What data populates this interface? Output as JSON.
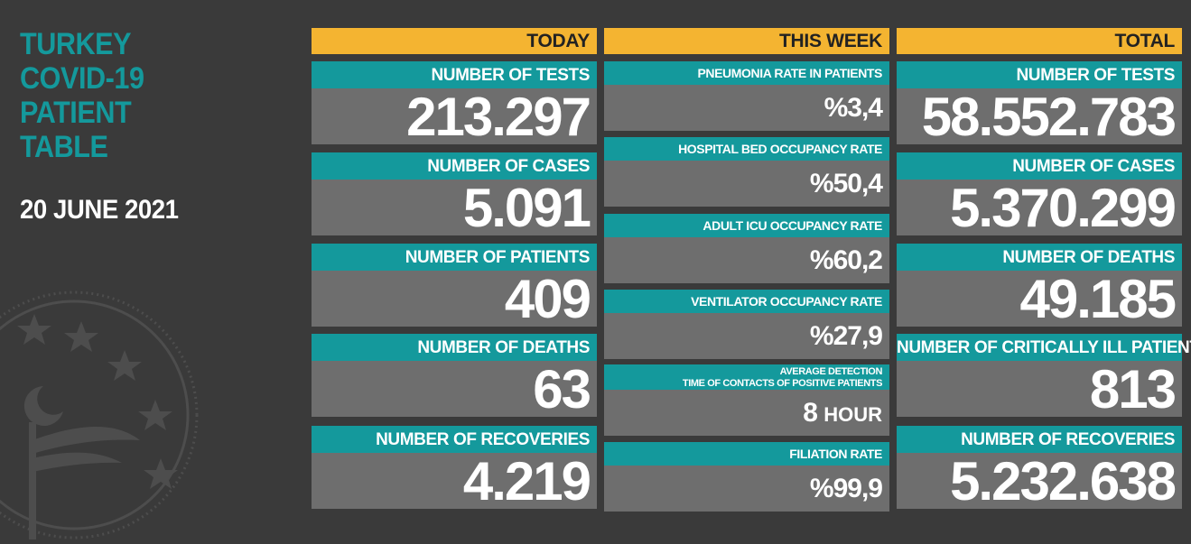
{
  "title": {
    "line1": "TURKEY",
    "line2": "COVID-19",
    "line3": "PATIENT",
    "line4": "TABLE"
  },
  "date": "20 JUNE 2021",
  "colors": {
    "background": "#3a3a3a",
    "teal": "#14999c",
    "header": "#f4b431",
    "value_bg": "#6e6e6e",
    "text": "#ffffff"
  },
  "today": {
    "header": "TODAY",
    "items": [
      {
        "label": "NUMBER OF TESTS",
        "value": "213.297"
      },
      {
        "label": "NUMBER OF CASES",
        "value": "5.091"
      },
      {
        "label": "NUMBER OF PATIENTS",
        "value": "409"
      },
      {
        "label": "NUMBER OF DEATHS",
        "value": "63"
      },
      {
        "label": "NUMBER OF RECOVERIES",
        "value": "4.219"
      }
    ]
  },
  "week": {
    "header": "THIS WEEK",
    "items": [
      {
        "label": "PNEUMONIA RATE IN PATIENTS",
        "value": "%3,4"
      },
      {
        "label": "HOSPITAL BED OCCUPANCY RATE",
        "value": "%50,4"
      },
      {
        "label": "ADULT ICU OCCUPANCY RATE",
        "value": "%60,2"
      },
      {
        "label": "VENTILATOR OCCUPANCY RATE",
        "value": "%27,9"
      },
      {
        "label_line1": "AVERAGE DETECTION",
        "label_line2": "TIME OF CONTACTS OF POSITIVE PATIENTS",
        "value": "8",
        "unit": "HOUR"
      },
      {
        "label": "FILIATION RATE",
        "value": "%99,9"
      }
    ]
  },
  "total": {
    "header": "TOTAL",
    "items": [
      {
        "label": "NUMBER OF TESTS",
        "value": "58.552.783"
      },
      {
        "label": "NUMBER OF CASES",
        "value": "5.370.299"
      },
      {
        "label": "NUMBER OF DEATHS",
        "value": "49.185"
      },
      {
        "label": "NUMBER OF CRITICALLY ILL PATIENTS",
        "value": "813"
      },
      {
        "label": "NUMBER OF RECOVERIES",
        "value": "5.232.638"
      }
    ]
  },
  "icons": {
    "emblem": "ministry-of-health-emblem-icon"
  }
}
